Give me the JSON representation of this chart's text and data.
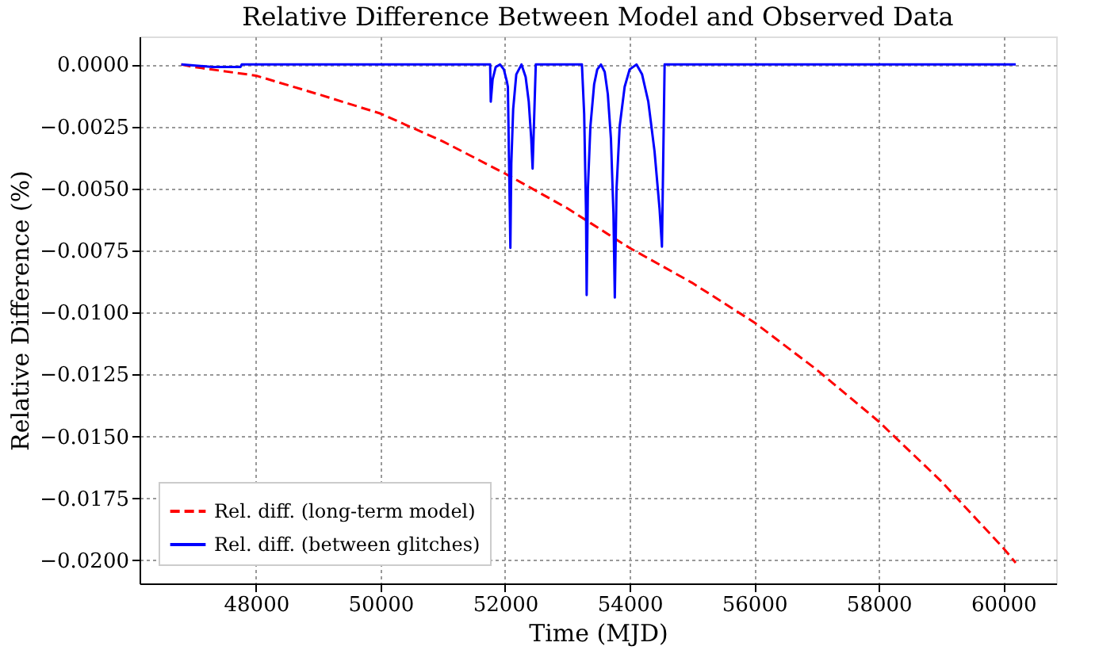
{
  "chart_data": {
    "type": "line",
    "title": "Relative Difference Between Model and Observed Data",
    "xlabel": "Time (MJD)",
    "ylabel": "Relative Difference (%)",
    "xlim": [
      46130,
      60850
    ],
    "ylim": [
      -0.02093,
      0.00113
    ],
    "xticks": [
      48000,
      50000,
      52000,
      54000,
      56000,
      58000,
      60000
    ],
    "yticks": [
      {
        "value": 0,
        "label": "0.0000"
      },
      {
        "value": -0.0025,
        "label": "−0.0025"
      },
      {
        "value": -0.005,
        "label": "−0.0050"
      },
      {
        "value": -0.0075,
        "label": "−0.0075"
      },
      {
        "value": -0.01,
        "label": "−0.0100"
      },
      {
        "value": -0.0125,
        "label": "−0.0125"
      },
      {
        "value": -0.015,
        "label": "−0.0150"
      },
      {
        "value": -0.0175,
        "label": "−0.0175"
      },
      {
        "value": -0.02,
        "label": "−0.0200"
      }
    ],
    "grid": true,
    "legend": "bottom left",
    "marker": "none",
    "series": [
      {
        "name": "Rel. diff. (long-term model)",
        "color": "#ff0000",
        "line_style": "dashed",
        "x": [
          46800,
          47000,
          48000,
          49000,
          50000,
          51000,
          52000,
          53000,
          54000,
          55000,
          56000,
          57000,
          58000,
          59000,
          60000,
          60200
        ],
        "values": [
          0,
          -0.0001,
          -0.00045,
          -0.0012,
          -0.00198,
          -0.0031,
          -0.0044,
          -0.0058,
          -0.0074,
          -0.0088,
          -0.0104,
          -0.0123,
          -0.0144,
          -0.0168,
          -0.0195,
          -0.0201
        ]
      },
      {
        "name": "Rel. diff. (between glitches)",
        "color": "#0000ff",
        "line_style": "solid",
        "x": [
          46800,
          47300,
          47750,
          47770,
          49000,
          51000,
          51760,
          51770,
          51800,
          51850,
          51920,
          51980,
          52030,
          52045,
          52085,
          52100,
          52130,
          52180,
          52263,
          52330,
          52380,
          52420,
          52442,
          52493,
          53234,
          53270,
          53300,
          53310,
          53330,
          53370,
          53430,
          53480,
          53540,
          53600,
          53650,
          53700,
          53740,
          53762,
          53790,
          53840,
          53920,
          54000,
          54110,
          54200,
          54300,
          54400,
          54480,
          54519,
          54562,
          56000,
          58000,
          60200
        ],
        "values": [
          0,
          -0.0001,
          -0.0001,
          0,
          0,
          0,
          0,
          -0.0015,
          -0.0006,
          -0.0001,
          0,
          -0.0002,
          -0.0007,
          -0.0009,
          -0.0074,
          -0.004,
          -0.0018,
          -0.0004,
          0,
          -0.0005,
          -0.0015,
          -0.003,
          -0.0042,
          0,
          0,
          -0.002,
          -0.006,
          -0.0093,
          -0.005,
          -0.0025,
          -0.0008,
          -0.0002,
          0,
          -0.0003,
          -0.0012,
          -0.003,
          -0.006,
          -0.0094,
          -0.005,
          -0.0025,
          -0.0009,
          -0.0002,
          0,
          -0.0004,
          -0.0015,
          -0.0035,
          -0.0058,
          -0.00735,
          0,
          0,
          0,
          0
        ]
      }
    ]
  }
}
